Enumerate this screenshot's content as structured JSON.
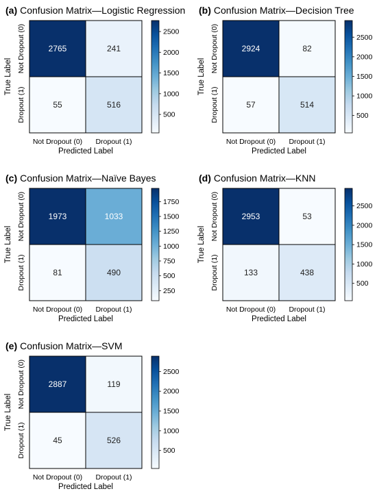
{
  "chart_data": [
    {
      "type": "heatmap",
      "panel_letter": "(a)",
      "title": "Confusion Matrix—Logistic Regression",
      "xlabel": "Predicted Label",
      "ylabel": "True Label",
      "x_tick_labels": [
        "Not Dropout (0)",
        "Dropout (1)"
      ],
      "y_tick_labels": [
        "Not Dropout (0)",
        "Dropout (1)"
      ],
      "values": [
        [
          2765,
          241
        ],
        [
          55,
          516
        ]
      ],
      "colorbar": {
        "min": 55,
        "max": 2765,
        "ticks": [
          500,
          1000,
          1500,
          2000,
          2500
        ]
      },
      "colormap": "Blues"
    },
    {
      "type": "heatmap",
      "panel_letter": "(b)",
      "title": "Confusion Matrix—Decision Tree",
      "xlabel": "Predicted Label",
      "ylabel": "True Label",
      "x_tick_labels": [
        "Not Dropout (0)",
        "Dropout (1)"
      ],
      "y_tick_labels": [
        "Not Dropout (0)",
        "Dropout (1)"
      ],
      "values": [
        [
          2924,
          82
        ],
        [
          57,
          514
        ]
      ],
      "colorbar": {
        "min": 57,
        "max": 2924,
        "ticks": [
          500,
          1000,
          1500,
          2000,
          2500
        ]
      },
      "colormap": "Blues"
    },
    {
      "type": "heatmap",
      "panel_letter": "(c)",
      "title": "Confusion Matrix—Naïve Bayes",
      "xlabel": "Predicted Label",
      "ylabel": "True Label",
      "x_tick_labels": [
        "Not Dropout (0)",
        "Dropout (1)"
      ],
      "y_tick_labels": [
        "Not Dropout (0)",
        "Dropout (1)"
      ],
      "values": [
        [
          1973,
          1033
        ],
        [
          81,
          490
        ]
      ],
      "colorbar": {
        "min": 81,
        "max": 1973,
        "ticks": [
          250,
          500,
          750,
          1000,
          1250,
          1500,
          1750
        ]
      },
      "colormap": "Blues"
    },
    {
      "type": "heatmap",
      "panel_letter": "(d)",
      "title": "Confusion Matrix—KNN",
      "xlabel": "Predicted Label",
      "ylabel": "True Label",
      "x_tick_labels": [
        "Not Dropout (0)",
        "Dropout (1)"
      ],
      "y_tick_labels": [
        "Not Dropout (0)",
        "Dropout (1)"
      ],
      "values": [
        [
          2953,
          53
        ],
        [
          133,
          438
        ]
      ],
      "colorbar": {
        "min": 53,
        "max": 2953,
        "ticks": [
          500,
          1000,
          1500,
          2000,
          2500
        ]
      },
      "colormap": "Blues"
    },
    {
      "type": "heatmap",
      "panel_letter": "(e)",
      "title": "Confusion Matrix—SVM",
      "xlabel": "Predicted Label",
      "ylabel": "True Label",
      "x_tick_labels": [
        "Not Dropout (0)",
        "Dropout (1)"
      ],
      "y_tick_labels": [
        "Not Dropout (0)",
        "Dropout (1)"
      ],
      "values": [
        [
          2887,
          119
        ],
        [
          45,
          526
        ]
      ],
      "colorbar": {
        "min": 45,
        "max": 2887,
        "ticks": [
          500,
          1000,
          1500,
          2000,
          2500
        ]
      },
      "colormap": "Blues"
    }
  ]
}
